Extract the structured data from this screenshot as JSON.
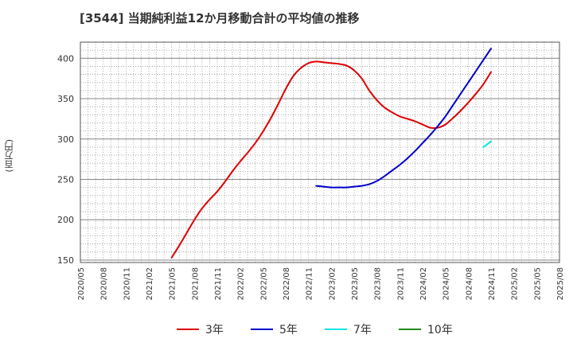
{
  "chart_data": {
    "type": "line",
    "title": "[3544]  当期純利益12か月移動合計の平均値の推移",
    "xlabel": "",
    "ylabel": "(百万円)",
    "ylim": [
      147,
      420
    ],
    "yticks": [
      150,
      200,
      250,
      300,
      350,
      400
    ],
    "xticks": [
      "2020/05",
      "2020/08",
      "2020/11",
      "2021/02",
      "2021/05",
      "2021/08",
      "2021/11",
      "2022/02",
      "2022/05",
      "2022/08",
      "2022/11",
      "2023/02",
      "2023/05",
      "2023/08",
      "2023/11",
      "2024/02",
      "2024/05",
      "2024/08",
      "2024/11",
      "2025/02",
      "2025/05",
      "2025/08"
    ],
    "grid": true,
    "legend_position": "bottom",
    "series": [
      {
        "name": "3年",
        "color": "#dd0000",
        "points": [
          [
            "2021/05",
            153
          ],
          [
            "2021/06",
            168
          ],
          [
            "2021/07",
            184
          ],
          [
            "2021/08",
            200
          ],
          [
            "2021/09",
            214
          ],
          [
            "2021/10",
            225
          ],
          [
            "2021/11",
            235
          ],
          [
            "2021/12",
            247
          ],
          [
            "2022/01",
            260
          ],
          [
            "2022/02",
            272
          ],
          [
            "2022/03",
            283
          ],
          [
            "2022/04",
            295
          ],
          [
            "2022/05",
            309
          ],
          [
            "2022/06",
            325
          ],
          [
            "2022/07",
            343
          ],
          [
            "2022/08",
            362
          ],
          [
            "2022/09",
            378
          ],
          [
            "2022/10",
            388
          ],
          [
            "2022/11",
            394
          ],
          [
            "2022/12",
            396
          ],
          [
            "2023/01",
            395
          ],
          [
            "2023/02",
            394
          ],
          [
            "2023/03",
            393
          ],
          [
            "2023/04",
            391
          ],
          [
            "2023/05",
            385
          ],
          [
            "2023/06",
            375
          ],
          [
            "2023/07",
            360
          ],
          [
            "2023/08",
            348
          ],
          [
            "2023/09",
            339
          ],
          [
            "2023/10",
            333
          ],
          [
            "2023/11",
            328
          ],
          [
            "2023/12",
            325
          ],
          [
            "2024/01",
            322
          ],
          [
            "2024/02",
            318
          ],
          [
            "2024/03",
            314
          ],
          [
            "2024/04",
            314
          ],
          [
            "2024/05",
            318
          ],
          [
            "2024/06",
            326
          ],
          [
            "2024/07",
            335
          ],
          [
            "2024/08",
            345
          ],
          [
            "2024/09",
            356
          ],
          [
            "2024/10",
            368
          ],
          [
            "2024/11",
            383
          ]
        ]
      },
      {
        "name": "5年",
        "color": "#0000cc",
        "points": [
          [
            "2022/12",
            242
          ],
          [
            "2023/01",
            241
          ],
          [
            "2023/02",
            240
          ],
          [
            "2023/03",
            240
          ],
          [
            "2023/04",
            240
          ],
          [
            "2023/05",
            241
          ],
          [
            "2023/06",
            242
          ],
          [
            "2023/07",
            244
          ],
          [
            "2023/08",
            248
          ],
          [
            "2023/09",
            254
          ],
          [
            "2023/10",
            261
          ],
          [
            "2023/11",
            268
          ],
          [
            "2023/12",
            276
          ],
          [
            "2024/01",
            285
          ],
          [
            "2024/02",
            295
          ],
          [
            "2024/03",
            305
          ],
          [
            "2024/04",
            316
          ],
          [
            "2024/05",
            328
          ],
          [
            "2024/06",
            342
          ],
          [
            "2024/07",
            356
          ],
          [
            "2024/08",
            370
          ],
          [
            "2024/09",
            384
          ],
          [
            "2024/10",
            398
          ],
          [
            "2024/11",
            412
          ]
        ]
      },
      {
        "name": "7年",
        "color": "#00e5e5",
        "points": [
          [
            "2024/10",
            290
          ],
          [
            "2024/11",
            297
          ]
        ]
      },
      {
        "name": "10年",
        "color": "#228b22",
        "points": []
      }
    ]
  }
}
